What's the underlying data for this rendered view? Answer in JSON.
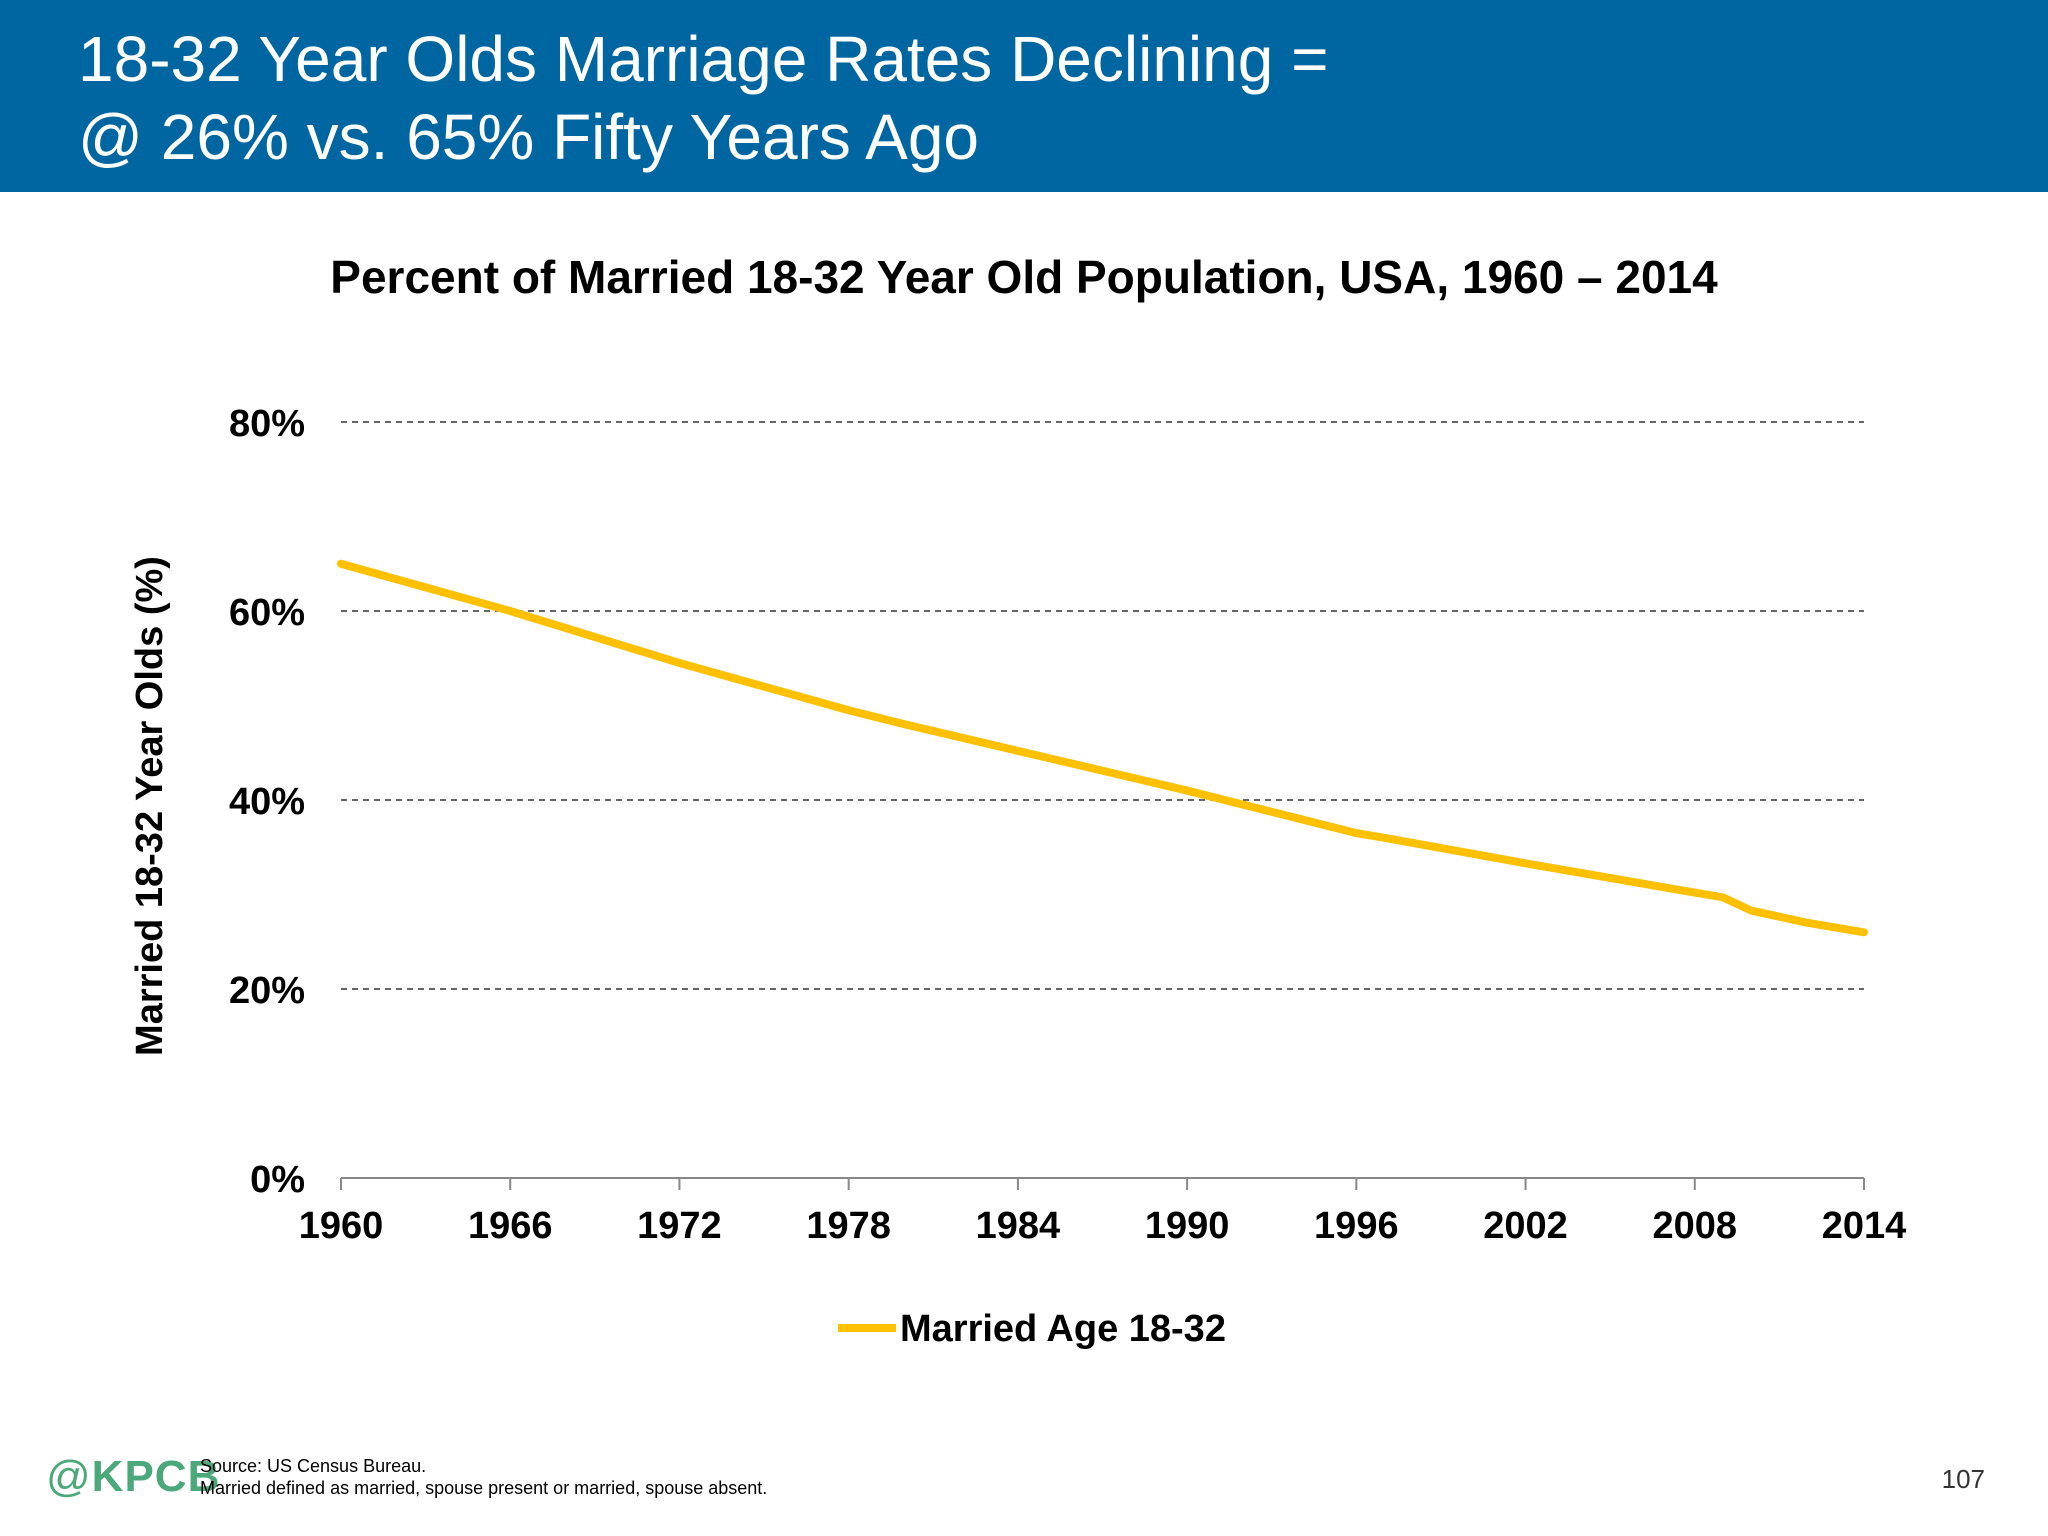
{
  "header": {
    "title_line1": "18-32 Year Olds Marriage Rates Declining =",
    "title_line2": "@ 26% vs. 65% Fifty Years Ago"
  },
  "colors": {
    "header_bg": "#0066a1",
    "series": "#ffc000",
    "logo": "#4aa87a"
  },
  "chart_data": {
    "type": "line",
    "title": "Percent of Married 18-32 Year Old Population, USA, 1960 – 2014",
    "xlabel": "",
    "ylabel": "Married 18-32 Year Olds (%)",
    "xlim": [
      1960,
      2014
    ],
    "ylim": [
      0,
      80
    ],
    "x_ticks": [
      1960,
      1966,
      1972,
      1978,
      1984,
      1990,
      1996,
      2002,
      2008,
      2014
    ],
    "x_tick_labels": [
      "1960",
      "1966",
      "1972",
      "1978",
      "1984",
      "1990",
      "1996",
      "2002",
      "2008",
      "2014"
    ],
    "y_ticks": [
      0,
      20,
      40,
      60,
      80
    ],
    "y_tick_labels": [
      "0%",
      "20%",
      "40%",
      "60%",
      "80%"
    ],
    "grid": "horizontal dashed",
    "legend": "bottom-center",
    "series": [
      {
        "name": "Married Age 18-32",
        "x": [
          1960,
          1966,
          1972,
          1978,
          1980,
          1984,
          1990,
          1996,
          1997,
          2002,
          2008,
          2009,
          2010,
          2012,
          2014
        ],
        "values": [
          65,
          60,
          54.5,
          49.5,
          48,
          45.2,
          41,
          36.5,
          36,
          33.3,
          30.2,
          29.7,
          28.3,
          27,
          26
        ]
      }
    ]
  },
  "footer": {
    "logo_at": "@",
    "logo_text": "KPCB",
    "source_line1": "Source: US Census Bureau.",
    "source_line2": "Married defined as married, spouse present or married, spouse absent.",
    "page_number": "107"
  }
}
